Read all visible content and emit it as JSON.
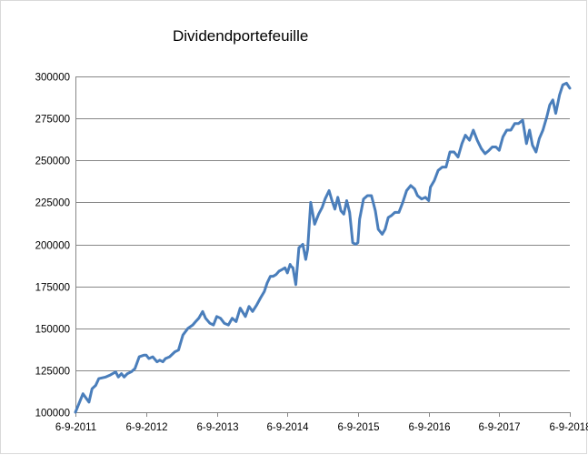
{
  "chart_data": {
    "type": "line",
    "title": "Dividendportefeuille",
    "xlabel": "",
    "ylabel": "",
    "ylim": [
      100000,
      300000
    ],
    "xlim": [
      "2011-09-06",
      "2018-09-06"
    ],
    "grid": {
      "horizontal": true,
      "vertical": false
    },
    "legend": "none",
    "yticks": [
      "100000",
      "125000",
      "150000",
      "175000",
      "200000",
      "225000",
      "250000",
      "275000",
      "300000"
    ],
    "xticks": [
      {
        "date": "2011-09-06",
        "label": "6-9-2011"
      },
      {
        "date": "2012-09-06",
        "label": "6-9-2012"
      },
      {
        "date": "2013-09-06",
        "label": "6-9-2013"
      },
      {
        "date": "2014-09-06",
        "label": "6-9-2014"
      },
      {
        "date": "2015-09-06",
        "label": "6-9-2015"
      },
      {
        "date": "2016-09-06",
        "label": "6-9-2016"
      },
      {
        "date": "2017-09-06",
        "label": "6-9-2017"
      },
      {
        "date": "2018-09-06",
        "label": "6-9-2018"
      }
    ],
    "colors": {
      "line": "#4a7ebb",
      "grid": "#878787",
      "axis": "#878787"
    },
    "series": [
      {
        "x": [
          "2011-09-06",
          "2011-10-15",
          "2011-11-15",
          "2011-12-01",
          "2011-12-20",
          "2012-01-05",
          "2012-02-10",
          "2012-03-01",
          "2012-04-01",
          "2012-04-15",
          "2012-05-01",
          "2012-05-15",
          "2012-06-01",
          "2012-06-20",
          "2012-07-10",
          "2012-08-01",
          "2012-08-25",
          "2012-09-06",
          "2012-09-20",
          "2012-10-10",
          "2012-11-01",
          "2012-11-15",
          "2012-12-01",
          "2012-12-15",
          "2013-01-05",
          "2013-02-01",
          "2013-02-20",
          "2013-03-15",
          "2013-04-10",
          "2013-05-05",
          "2013-05-20",
          "2013-06-05",
          "2013-06-25",
          "2013-07-10",
          "2013-08-01",
          "2013-08-20",
          "2013-09-06",
          "2013-09-25",
          "2013-10-15",
          "2013-11-05",
          "2013-11-25",
          "2013-12-15",
          "2014-01-05",
          "2014-02-01",
          "2014-02-20",
          "2014-03-10",
          "2014-04-01",
          "2014-04-20",
          "2014-05-10",
          "2014-05-25",
          "2014-06-10",
          "2014-06-25",
          "2014-07-10",
          "2014-07-25",
          "2014-08-10",
          "2014-08-25",
          "2014-09-06",
          "2014-09-20",
          "2014-09-25",
          "2014-10-05",
          "2014-10-20",
          "2014-11-05",
          "2014-11-25",
          "2014-12-10",
          "2014-12-20",
          "2015-01-05",
          "2015-01-25",
          "2015-02-15",
          "2015-03-05",
          "2015-03-20",
          "2015-04-10",
          "2015-04-25",
          "2015-05-10",
          "2015-05-25",
          "2015-06-10",
          "2015-06-25",
          "2015-07-10",
          "2015-07-25",
          "2015-08-10",
          "2015-08-25",
          "2015-09-06",
          "2015-09-15",
          "2015-10-05",
          "2015-10-25",
          "2015-11-15",
          "2015-12-05",
          "2015-12-20",
          "2016-01-10",
          "2016-01-25",
          "2016-02-10",
          "2016-02-25",
          "2016-03-15",
          "2016-04-05",
          "2016-04-25",
          "2016-05-15",
          "2016-06-05",
          "2016-06-25",
          "2016-07-10",
          "2016-08-01",
          "2016-08-20",
          "2016-09-06",
          "2016-09-15",
          "2016-10-05",
          "2016-10-25",
          "2016-11-15",
          "2016-12-05",
          "2016-12-25",
          "2017-01-15",
          "2017-02-05",
          "2017-02-25",
          "2017-03-15",
          "2017-04-05",
          "2017-04-25",
          "2017-05-15",
          "2017-06-05",
          "2017-06-25",
          "2017-07-15",
          "2017-08-01",
          "2017-08-20",
          "2017-09-06",
          "2017-09-25",
          "2017-10-15",
          "2017-11-05",
          "2017-11-25",
          "2017-12-15",
          "2018-01-05",
          "2018-01-25",
          "2018-02-10",
          "2018-02-25",
          "2018-03-15",
          "2018-04-01",
          "2018-04-20",
          "2018-05-10",
          "2018-05-25",
          "2018-06-10",
          "2018-06-25",
          "2018-07-15",
          "2018-08-01",
          "2018-08-20",
          "2018-09-06"
        ],
        "y": [
          100000,
          111000,
          106000,
          114000,
          116000,
          120000,
          121000,
          122000,
          124000,
          121000,
          123000,
          121000,
          123000,
          124000,
          126000,
          133000,
          134000,
          134000,
          132000,
          133000,
          130000,
          131000,
          130000,
          132000,
          133000,
          136000,
          137000,
          146000,
          150000,
          152000,
          154000,
          156000,
          160000,
          156000,
          153000,
          152000,
          157000,
          156000,
          153000,
          152000,
          156000,
          154000,
          162000,
          157000,
          163000,
          160000,
          164000,
          168000,
          172000,
          177000,
          181000,
          181000,
          182000,
          184000,
          185000,
          186000,
          183000,
          188000,
          187000,
          186000,
          176000,
          198000,
          200000,
          191000,
          197000,
          225000,
          212000,
          218000,
          222000,
          227000,
          232000,
          226000,
          221000,
          228000,
          220000,
          218000,
          226000,
          219000,
          201000,
          200000,
          201000,
          215000,
          227000,
          229000,
          229000,
          220000,
          209000,
          206000,
          209000,
          216000,
          217000,
          219000,
          219000,
          225000,
          232000,
          235000,
          233000,
          229000,
          227000,
          228000,
          226000,
          234000,
          238000,
          244000,
          246000,
          246000,
          255000,
          255000,
          252000,
          260000,
          265000,
          262000,
          268000,
          262000,
          257000,
          254000,
          256000,
          258000,
          258000,
          256000,
          264000,
          268000,
          268000,
          272000,
          272000,
          274000,
          260000,
          268000,
          259000,
          255000,
          263000,
          268000,
          276000,
          283000,
          286000,
          278000,
          289000,
          295000,
          296000,
          293000
        ]
      }
    ]
  }
}
